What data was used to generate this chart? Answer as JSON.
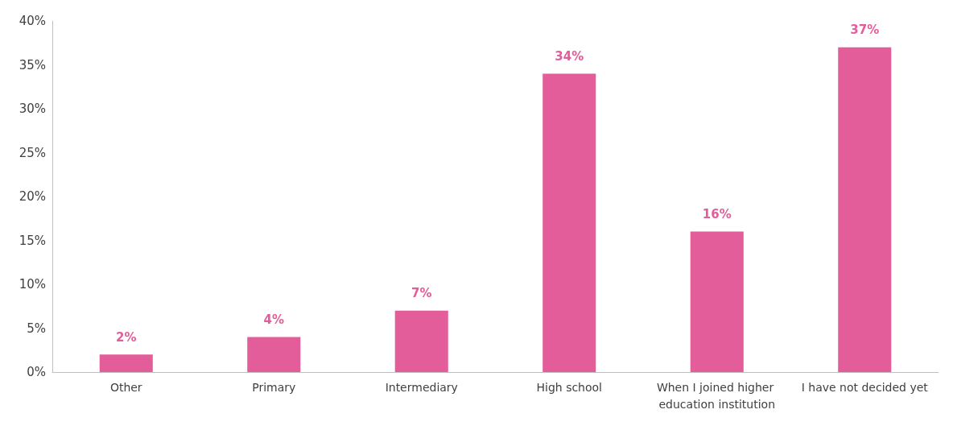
{
  "chart_data": {
    "type": "bar",
    "categories": [
      "Other",
      "Primary",
      "Intermediary",
      "High school",
      "When I joined higher education institution",
      "I have not decided yet"
    ],
    "values": [
      2,
      4,
      7,
      34,
      16,
      37
    ],
    "value_labels": [
      "2%",
      "4%",
      "7%",
      "34%",
      "16%",
      "37%"
    ],
    "color": "#e35d9a",
    "ylim": [
      0,
      40
    ],
    "yticks": [
      {
        "value": 0,
        "label": "0%"
      },
      {
        "value": 5,
        "label": "5%"
      },
      {
        "value": 10,
        "label": "10%"
      },
      {
        "value": 15,
        "label": "15%"
      },
      {
        "value": 20,
        "label": "20%"
      },
      {
        "value": 25,
        "label": "25%"
      },
      {
        "value": 30,
        "label": "30%"
      },
      {
        "value": 35,
        "label": "35%"
      },
      {
        "value": 40,
        "label": "40%"
      }
    ],
    "grid": false
  }
}
